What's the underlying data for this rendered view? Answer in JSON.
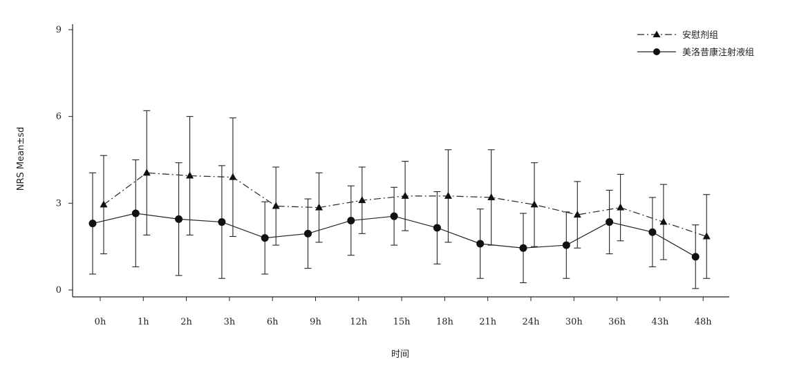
{
  "chart_data": {
    "type": "line",
    "title": "",
    "xlabel": "时间",
    "ylabel": "NRS Mean±sd",
    "categories": [
      "0h",
      "1h",
      "2h",
      "3h",
      "6h",
      "9h",
      "12h",
      "15h",
      "18h",
      "21h",
      "24h",
      "30h",
      "36h",
      "43h",
      "48h"
    ],
    "ylim": [
      0,
      9
    ],
    "yticks": [
      0,
      3,
      6,
      9
    ],
    "grid": false,
    "legend": "top-right",
    "series": [
      {
        "name": "安慰剂组",
        "marker": "triangle",
        "line_style": "dash-dot",
        "mean": [
          2.95,
          4.05,
          3.95,
          3.9,
          2.9,
          2.85,
          3.1,
          3.25,
          3.25,
          3.2,
          2.95,
          2.6,
          2.85,
          2.35,
          1.85
        ],
        "sd": [
          1.7,
          2.15,
          2.05,
          2.05,
          1.35,
          1.2,
          1.15,
          1.2,
          1.6,
          1.65,
          1.45,
          1.15,
          1.15,
          1.3,
          1.45
        ]
      },
      {
        "name": "美洛昔康注射液组",
        "marker": "circle",
        "line_style": "solid",
        "mean": [
          2.3,
          2.65,
          2.45,
          2.35,
          1.8,
          1.95,
          2.4,
          2.55,
          2.15,
          1.6,
          1.45,
          1.55,
          2.35,
          2.0,
          1.15
        ],
        "sd": [
          1.75,
          1.85,
          1.95,
          1.95,
          1.25,
          1.2,
          1.2,
          1.0,
          1.25,
          1.2,
          1.2,
          1.15,
          1.1,
          1.2,
          1.1
        ]
      }
    ]
  }
}
